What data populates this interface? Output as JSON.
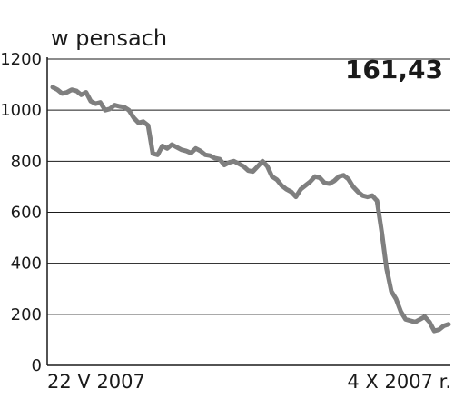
{
  "chart_data": {
    "type": "line",
    "ylabel": "w pensach",
    "value_label": "161,43",
    "ylim": [
      0,
      1200
    ],
    "yticks": [
      0,
      200,
      400,
      600,
      800,
      1000,
      1200
    ],
    "x_start_label": "22 V 2007",
    "x_end_label": "4 X 2007 r.",
    "grid": true,
    "colors": {
      "line": "#7f7f7f",
      "grid": "#1a1a1a",
      "axis": "#1a1a1a"
    },
    "series": [
      {
        "values": [
          1090,
          1080,
          1065,
          1070,
          1080,
          1075,
          1060,
          1070,
          1035,
          1025,
          1030,
          1000,
          1005,
          1020,
          1015,
          1012,
          1000,
          970,
          950,
          955,
          940,
          830,
          825,
          860,
          850,
          865,
          855,
          845,
          840,
          832,
          850,
          840,
          825,
          822,
          812,
          808,
          785,
          795,
          800,
          790,
          780,
          763,
          760,
          780,
          800,
          780,
          740,
          728,
          705,
          690,
          680,
          660,
          690,
          705,
          720,
          740,
          735,
          715,
          712,
          722,
          740,
          745,
          730,
          700,
          680,
          665,
          660,
          665,
          645,
          520,
          380,
          290,
          260,
          210,
          180,
          175,
          170,
          180,
          190,
          170,
          135,
          140,
          155,
          161
        ]
      }
    ]
  }
}
